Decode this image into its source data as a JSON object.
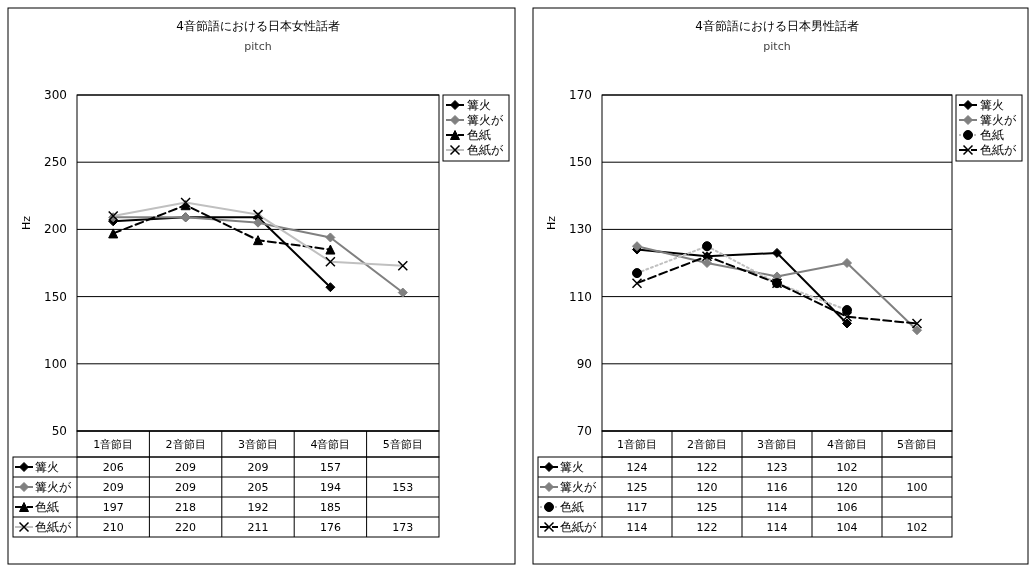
{
  "chart_data": [
    {
      "type": "line",
      "title": "4音節語における日本女性話者",
      "subtitle": "pitch",
      "ylabel": "Hz",
      "categories": [
        "1音節目",
        "2音節目",
        "3音節目",
        "4音節目",
        "5音節目"
      ],
      "ylim": [
        50,
        300
      ],
      "yticks": [
        50,
        100,
        150,
        200,
        250,
        300
      ],
      "grid": "y",
      "legend": "right",
      "data_labels": true,
      "series": [
        {
          "name": "篝火",
          "color": "#000000",
          "marker": "diamond",
          "line_style": "solid",
          "values": [
            206,
            209,
            209,
            157,
            null
          ]
        },
        {
          "name": "篝火が",
          "color": "#808080",
          "marker": "diamond",
          "line_style": "solid",
          "values": [
            209,
            209,
            205,
            194,
            153
          ]
        },
        {
          "name": "色紙",
          "color": "#000000",
          "marker": "triangle",
          "line_style": "dashed",
          "values": [
            197,
            218,
            192,
            185,
            null
          ]
        },
        {
          "name": "色紙が",
          "color": "#c0c0c0",
          "marker": "cross",
          "line_style": "solid",
          "values": [
            210,
            220,
            211,
            176,
            173
          ]
        }
      ]
    },
    {
      "type": "line",
      "title": "4音節語における日本男性話者",
      "subtitle": "pitch",
      "ylabel": "Hz",
      "categories": [
        "1音節目",
        "2音節目",
        "3音節目",
        "4音節目",
        "5音節目"
      ],
      "ylim": [
        70,
        170
      ],
      "yticks": [
        70,
        90,
        110,
        130,
        150,
        170
      ],
      "grid": "y",
      "legend": "right",
      "data_labels": true,
      "series": [
        {
          "name": "篝火",
          "color": "#000000",
          "marker": "diamond",
          "line_style": "solid",
          "values": [
            124,
            122,
            123,
            102,
            null
          ]
        },
        {
          "name": "篝火が",
          "color": "#808080",
          "marker": "diamond",
          "line_style": "solid",
          "values": [
            125,
            120,
            116,
            120,
            100
          ]
        },
        {
          "name": "色紙",
          "color": "#c0c0c0",
          "marker": "circle",
          "line_style": "dotted",
          "values": [
            117,
            125,
            114,
            106,
            null
          ]
        },
        {
          "name": "色紙が",
          "color": "#000000",
          "marker": "cross",
          "line_style": "dashed",
          "values": [
            114,
            122,
            114,
            104,
            102
          ]
        }
      ]
    }
  ]
}
